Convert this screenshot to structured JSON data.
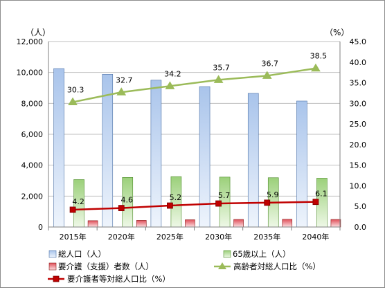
{
  "chart_data": {
    "type": "bar",
    "categories": [
      "2015年",
      "2020年",
      "2025年",
      "2030年",
      "2035年",
      "2040年"
    ],
    "y_left": {
      "unit": "（人）",
      "range": [
        0,
        12000
      ],
      "ticks": [
        "0",
        "2,000",
        "4,000",
        "6,000",
        "8,000",
        "10,000",
        "12,000"
      ],
      "tick_values": [
        0,
        2000,
        4000,
        6000,
        8000,
        10000,
        12000
      ]
    },
    "y_right": {
      "unit": "（%）",
      "range": [
        0,
        45
      ],
      "ticks": [
        "0.0",
        "5.0",
        "10.0",
        "15.0",
        "20.0",
        "25.0",
        "30.0",
        "35.0",
        "40.0",
        "45.0"
      ],
      "tick_values": [
        0,
        5,
        10,
        15,
        20,
        25,
        30,
        35,
        40,
        45
      ]
    },
    "grid": true,
    "legend_position": "bottom",
    "bar_series": [
      {
        "name": "総人口（人）",
        "values": [
          10250,
          9880,
          9500,
          9080,
          8650,
          8150
        ],
        "color": "#a9c4eb"
      },
      {
        "name": "65歳以上（人）",
        "values": [
          3070,
          3210,
          3260,
          3230,
          3190,
          3160
        ],
        "color": "#9bd07a"
      },
      {
        "name": "要介護（支援）者数（人）",
        "values": [
          410,
          430,
          470,
          490,
          500,
          490
        ],
        "color": "#e0505a"
      }
    ],
    "line_series": [
      {
        "name": "高齢者対総人口比（%）",
        "values": [
          30.3,
          32.7,
          34.2,
          35.7,
          36.7,
          38.5
        ],
        "labels": [
          "30.3",
          "32.7",
          "34.2",
          "35.7",
          "36.7",
          "38.5"
        ],
        "color": "#9bbb59",
        "marker": "triangle"
      },
      {
        "name": "要介護者等対総人口比（%）",
        "values": [
          4.2,
          4.6,
          5.2,
          5.7,
          5.9,
          6.1
        ],
        "labels": [
          "4.2",
          "4.6",
          "5.2",
          "5.7",
          "5.9",
          "6.1"
        ],
        "color": "#c00000",
        "marker": "square"
      }
    ]
  }
}
